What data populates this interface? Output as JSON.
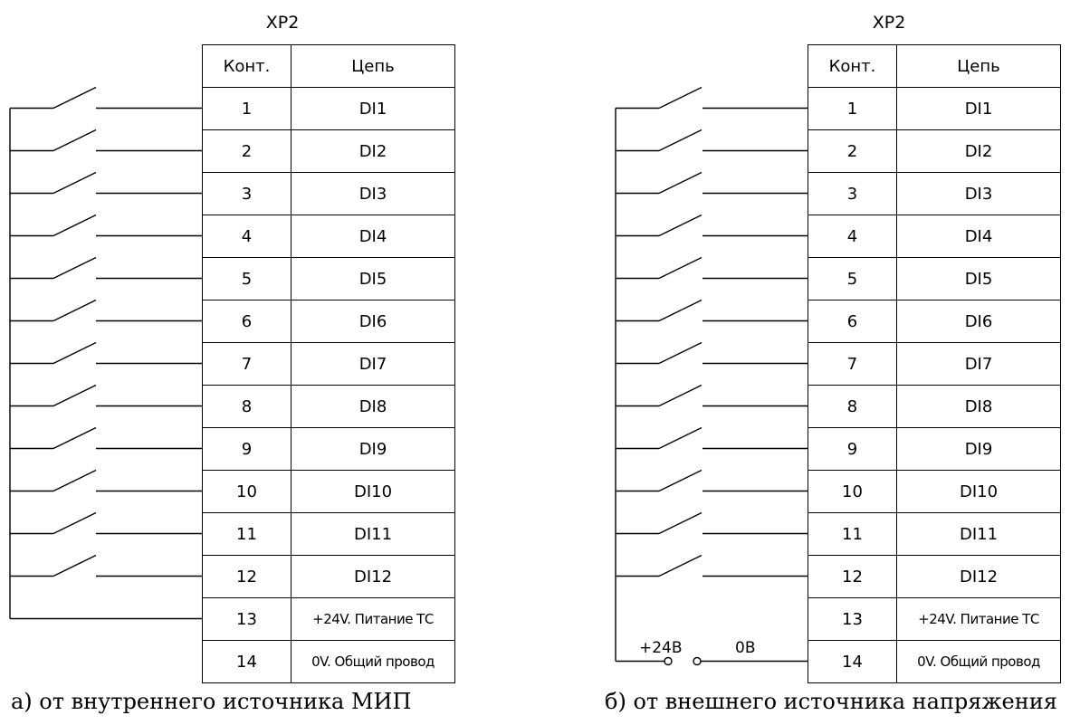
{
  "panels": [
    {
      "connector": "XP2",
      "headers": {
        "contact": "Конт.",
        "circuit": "Цепь"
      },
      "rows": [
        {
          "contact": "1",
          "circuit": "DI1"
        },
        {
          "contact": "2",
          "circuit": "DI2"
        },
        {
          "contact": "3",
          "circuit": "DI3"
        },
        {
          "contact": "4",
          "circuit": "DI4"
        },
        {
          "contact": "5",
          "circuit": "DI5"
        },
        {
          "contact": "6",
          "circuit": "DI6"
        },
        {
          "contact": "7",
          "circuit": "DI7"
        },
        {
          "contact": "8",
          "circuit": "DI8"
        },
        {
          "contact": "9",
          "circuit": "DI9"
        },
        {
          "contact": "10",
          "circuit": "DI10"
        },
        {
          "contact": "11",
          "circuit": "DI11"
        },
        {
          "contact": "12",
          "circuit": "DI12"
        },
        {
          "contact": "13",
          "circuit": "+24V. Питание ТС"
        },
        {
          "contact": "14",
          "circuit": "0V. Общий провод"
        }
      ],
      "caption": "а) от внутреннего источника МИП"
    },
    {
      "connector": "XP2",
      "headers": {
        "contact": "Конт.",
        "circuit": "Цепь"
      },
      "rows": [
        {
          "contact": "1",
          "circuit": "DI1"
        },
        {
          "contact": "2",
          "circuit": "DI2"
        },
        {
          "contact": "3",
          "circuit": "DI3"
        },
        {
          "contact": "4",
          "circuit": "DI4"
        },
        {
          "contact": "5",
          "circuit": "DI5"
        },
        {
          "contact": "6",
          "circuit": "DI6"
        },
        {
          "contact": "7",
          "circuit": "DI7"
        },
        {
          "contact": "8",
          "circuit": "DI8"
        },
        {
          "contact": "9",
          "circuit": "DI9"
        },
        {
          "contact": "10",
          "circuit": "DI10"
        },
        {
          "contact": "11",
          "circuit": "DI11"
        },
        {
          "contact": "12",
          "circuit": "DI12"
        },
        {
          "contact": "13",
          "circuit": "+24V. Питание ТС"
        },
        {
          "contact": "14",
          "circuit": "0V. Общий провод"
        }
      ],
      "source_labels": {
        "plus": "+24В",
        "zero": "0В"
      },
      "caption": "б) от внешнего источника напряжения"
    }
  ]
}
